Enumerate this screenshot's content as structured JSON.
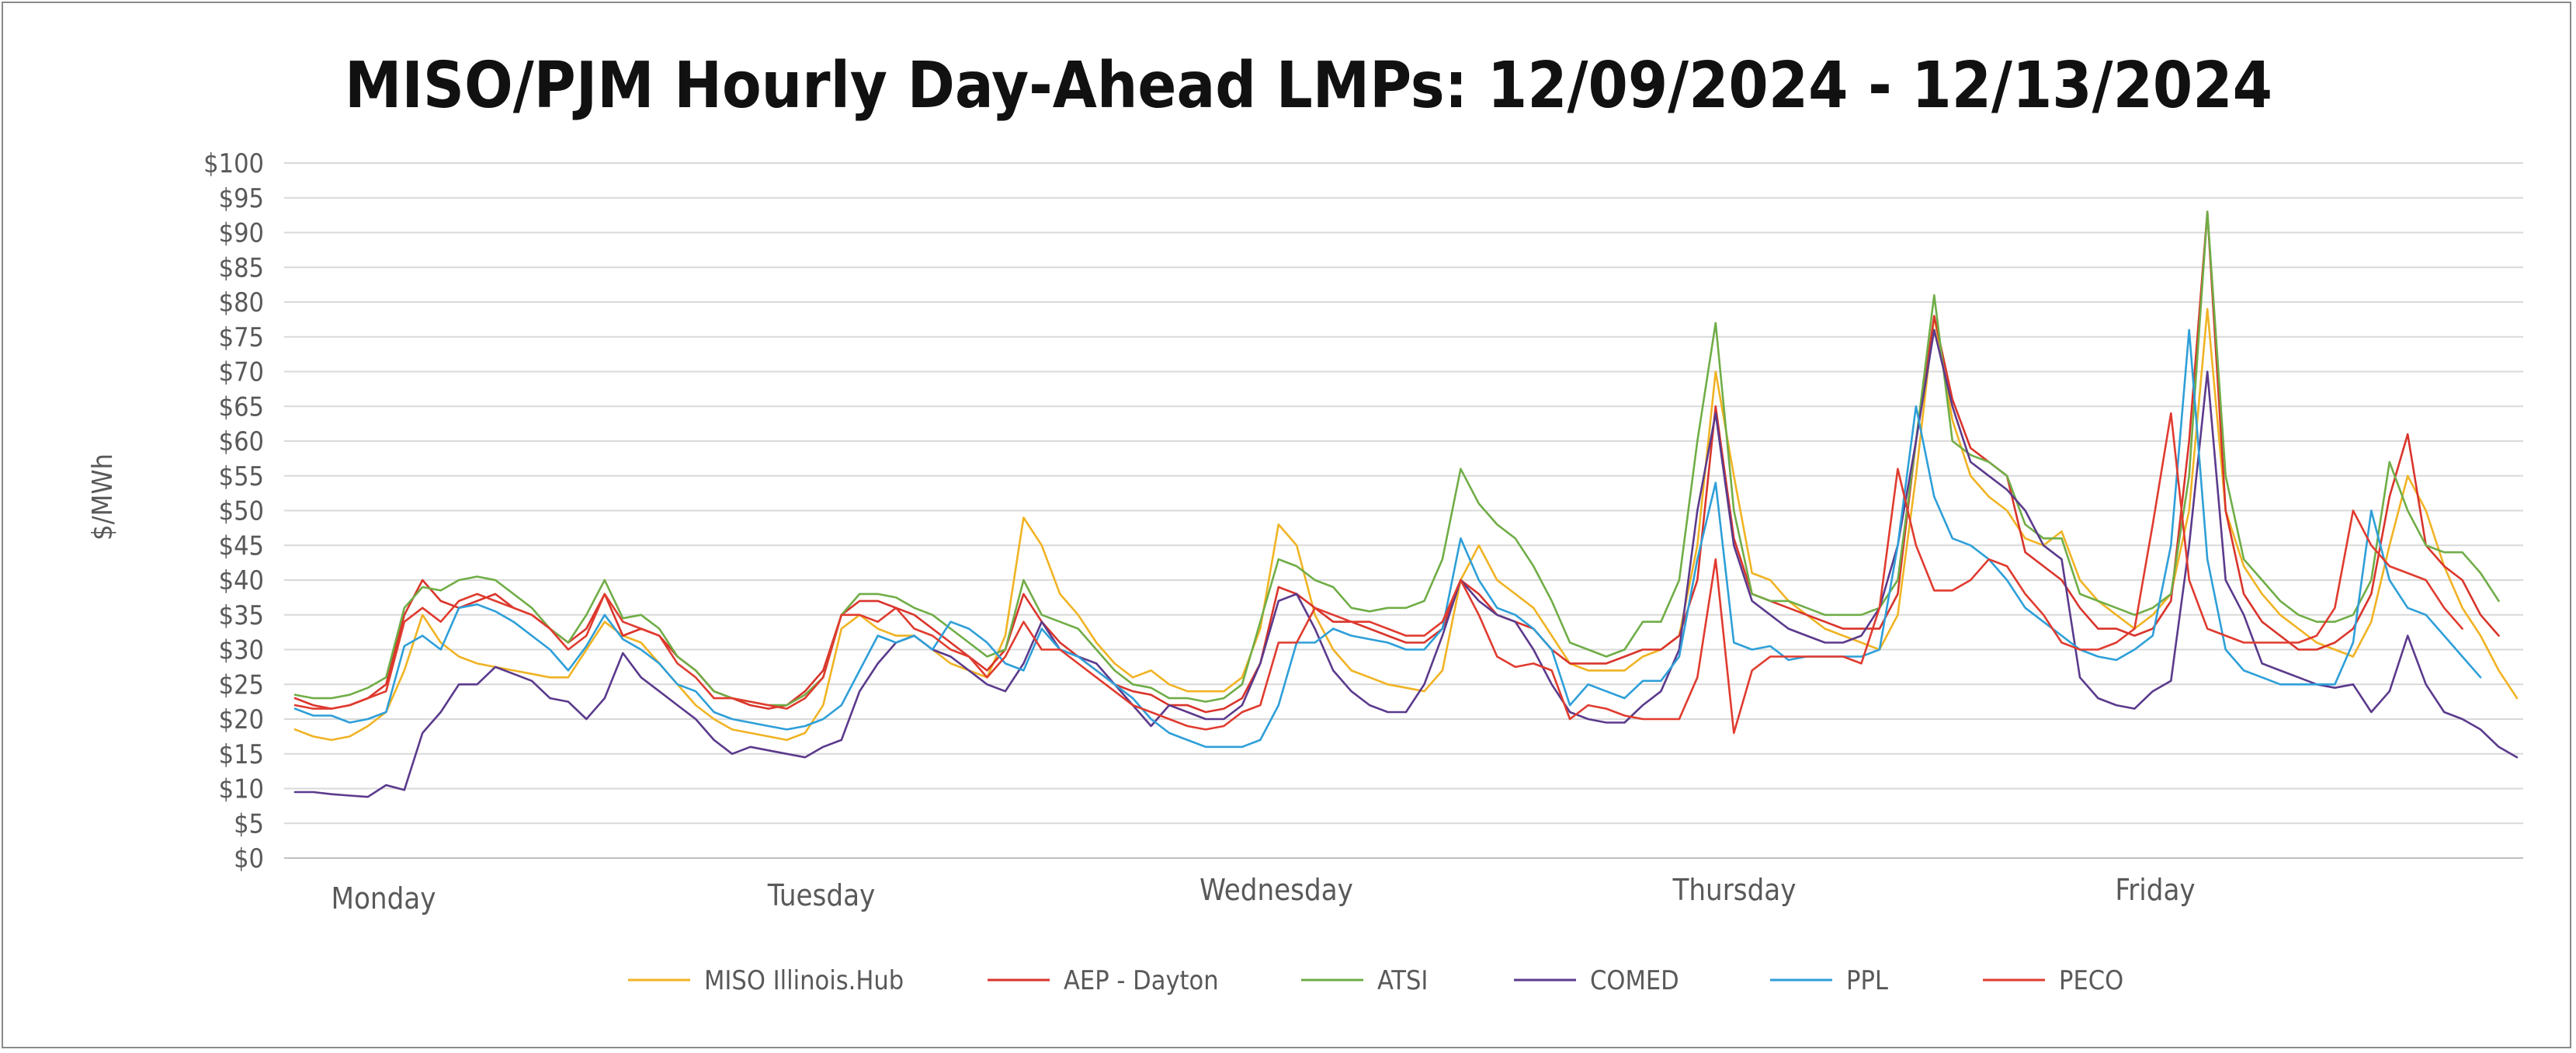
{
  "chart_data": {
    "type": "line",
    "title": "MISO/PJM Hourly Day-Ahead LMPs: 12/09/2024 - 12/13/2024",
    "ylabel": "$/MWh",
    "xlabel": "",
    "ylim": [
      0,
      100
    ],
    "yticks": [
      "$0",
      "$5",
      "$10",
      "$15",
      "$20",
      "$25",
      "$30",
      "$35",
      "$40",
      "$45",
      "$50",
      "$55",
      "$60",
      "$65",
      "$70",
      "$75",
      "$80",
      "$85",
      "$90",
      "$95",
      "$100"
    ],
    "day_labels": [
      "Monday",
      "Tuesday",
      "Wednesday",
      "Thursday",
      "Friday"
    ],
    "grid": true,
    "legend": "bottom",
    "series": [
      {
        "name": "MISO Illinois.Hub",
        "color": "#f0b323",
        "values": [
          18.5,
          17.5,
          17,
          17.5,
          19,
          21,
          27,
          35,
          31,
          29,
          28,
          27.5,
          27,
          26.5,
          26,
          26,
          30,
          34,
          32,
          31,
          28,
          25,
          22,
          20,
          18.5,
          18,
          17.5,
          17,
          18,
          22,
          33,
          35,
          33,
          32,
          32,
          30,
          28,
          27,
          26,
          32,
          49,
          45,
          38,
          35,
          31,
          28,
          26,
          27,
          25,
          24,
          24,
          24,
          26,
          33,
          48,
          45,
          35,
          30,
          27,
          26,
          25,
          24.5,
          24,
          27,
          40,
          45,
          40,
          38,
          36,
          32,
          28,
          27,
          27,
          27,
          29,
          30,
          32,
          45,
          70,
          55,
          41,
          40,
          37,
          35,
          33,
          32,
          31,
          30,
          35,
          55,
          78,
          63,
          55,
          52,
          50,
          46,
          45,
          47,
          40,
          37,
          35,
          33,
          35,
          38,
          50,
          79,
          50,
          42,
          38,
          35,
          33,
          31,
          30,
          29,
          34,
          45,
          55,
          50,
          42,
          36,
          32,
          27,
          23
        ]
      },
      {
        "name": "AEP - Dayton",
        "color": "#d9342b",
        "values": [
          23,
          22,
          21.5,
          22,
          23,
          25,
          35,
          40,
          37,
          36,
          37,
          38,
          36,
          35,
          33,
          31,
          33,
          38,
          32,
          33,
          32,
          29,
          27,
          24,
          23,
          22,
          21.5,
          22,
          24,
          27,
          35,
          37,
          37,
          36,
          35,
          33,
          31,
          29,
          27,
          30,
          38,
          34,
          31,
          29,
          27,
          25,
          24,
          23.5,
          22,
          22,
          21,
          21.5,
          23,
          28,
          39,
          38,
          36,
          34,
          34,
          33,
          32,
          31,
          31,
          33,
          40,
          38,
          35,
          34,
          33,
          30,
          28,
          28,
          28,
          29,
          30,
          30,
          32,
          40,
          65,
          46,
          38,
          37,
          36,
          35,
          34,
          33,
          33,
          33,
          38,
          60,
          78,
          66,
          59,
          57,
          55,
          44,
          42,
          40,
          36,
          33,
          33,
          32,
          33,
          37,
          60,
          93,
          50,
          38,
          34,
          32,
          30,
          30,
          31,
          33,
          38,
          52,
          61,
          45,
          42,
          40,
          35,
          32
        ]
      },
      {
        "name": "ATSI",
        "color": "#70ad47",
        "values": [
          23.5,
          23,
          23,
          23.5,
          24.5,
          26,
          36,
          39,
          38.5,
          40,
          40.5,
          40,
          38,
          36,
          33,
          31,
          35,
          40,
          34.5,
          35,
          33,
          29,
          27,
          24,
          23,
          22.5,
          22,
          22,
          23.5,
          26,
          35,
          38,
          38,
          37.5,
          36,
          35,
          33,
          31,
          29,
          30,
          40,
          35,
          34,
          33,
          30,
          27,
          25,
          24.5,
          23,
          23,
          22.5,
          23,
          25,
          34,
          43,
          42,
          40,
          39,
          36,
          35.5,
          36,
          36,
          37,
          43,
          56,
          51,
          48,
          46,
          42,
          37,
          31,
          30,
          29,
          30,
          34,
          34,
          40,
          60,
          77,
          50,
          38,
          37,
          37,
          36,
          35,
          35,
          35,
          36,
          40,
          60,
          81,
          60,
          58,
          57,
          55,
          48,
          46,
          46,
          38,
          37,
          36,
          35,
          36,
          38,
          55,
          93,
          55,
          43,
          40,
          37,
          35,
          34,
          34,
          35,
          40,
          57,
          50,
          45,
          44,
          44,
          41,
          37
        ]
      },
      {
        "name": "COMED",
        "color": "#5b3a8c",
        "values": [
          9.5,
          9.5,
          9.2,
          9,
          8.8,
          10.5,
          9.8,
          18,
          21,
          25,
          25,
          27.5,
          26.5,
          25.5,
          23,
          22.5,
          20,
          23,
          29.5,
          26,
          24,
          22,
          20,
          17,
          15,
          16,
          15.5,
          15,
          14.5,
          16,
          17,
          24,
          28,
          31,
          32,
          30,
          29,
          27,
          25,
          24,
          28,
          34,
          30,
          29,
          28,
          25,
          22,
          19,
          22,
          21,
          20,
          20,
          22,
          28,
          37,
          38,
          33,
          27,
          24,
          22,
          21,
          21,
          25,
          32,
          40,
          37,
          35,
          34,
          30,
          25,
          21,
          20,
          19.5,
          19.5,
          22,
          24,
          30,
          50,
          64,
          45,
          37,
          35,
          33,
          32,
          31,
          31,
          32,
          36,
          45,
          60,
          76,
          65,
          57,
          55,
          53,
          50,
          45,
          43,
          26,
          23,
          22,
          21.5,
          24,
          25.5,
          45,
          70,
          40,
          35,
          28,
          27,
          26,
          25,
          24.5,
          25,
          21,
          24,
          32,
          25,
          21,
          20,
          18.5,
          16,
          14.5
        ]
      },
      {
        "name": "PPL",
        "color": "#2e9fd8",
        "values": [
          21.5,
          20.5,
          20.5,
          19.5,
          20,
          21,
          30.5,
          32,
          30,
          36,
          36.5,
          35.5,
          34,
          32,
          30,
          27,
          30.5,
          35,
          31.5,
          30,
          28,
          25,
          24,
          21,
          20,
          19.5,
          19,
          18.5,
          19,
          20,
          22,
          27,
          32,
          31,
          32,
          30,
          34,
          33,
          31,
          28,
          27,
          33,
          30,
          29,
          27,
          25,
          23,
          20,
          18,
          17,
          16,
          16,
          16,
          17,
          22,
          31,
          31,
          33,
          32,
          31.5,
          31,
          30,
          30,
          33,
          46,
          40,
          36,
          35,
          33,
          30,
          22,
          25,
          24,
          23,
          25.5,
          25.5,
          29,
          43,
          54,
          31,
          30,
          30.5,
          28.5,
          29,
          29,
          29,
          29,
          30,
          45,
          65,
          52,
          46,
          45,
          43,
          40,
          36,
          34,
          32,
          30,
          29,
          28.5,
          30,
          32,
          45,
          76,
          43,
          30,
          27,
          26,
          25,
          25,
          25,
          25,
          31,
          50,
          40,
          36,
          35,
          32,
          29,
          26
        ]
      },
      {
        "name": "PECO",
        "color": "#e03b2f",
        "values": [
          22,
          21.5,
          21.5,
          22,
          23,
          24,
          34,
          36,
          34,
          37,
          38,
          37,
          36,
          35,
          33,
          30,
          32,
          38,
          34,
          33,
          32,
          28,
          26,
          23,
          23,
          22.5,
          22,
          21.5,
          23,
          26,
          35,
          35,
          34,
          36,
          33,
          32,
          30,
          29,
          26,
          29,
          34,
          30,
          30,
          28,
          26,
          24,
          22,
          21,
          20,
          19,
          18.5,
          19,
          21,
          22,
          31,
          31,
          36,
          35,
          34,
          34,
          33,
          32,
          32,
          34,
          40,
          35,
          29,
          27.5,
          28,
          27,
          20,
          22,
          21.5,
          20.5,
          20,
          20,
          20,
          26,
          43,
          18,
          27,
          29,
          29,
          29,
          29,
          29,
          28,
          36,
          56,
          45,
          38.5,
          38.5,
          40,
          43,
          42,
          38,
          35,
          31,
          30,
          30,
          31,
          33,
          48,
          64,
          40,
          33,
          32,
          31,
          31,
          31,
          31,
          32,
          36,
          50,
          45,
          42,
          41,
          40,
          36,
          33
        ]
      }
    ]
  }
}
